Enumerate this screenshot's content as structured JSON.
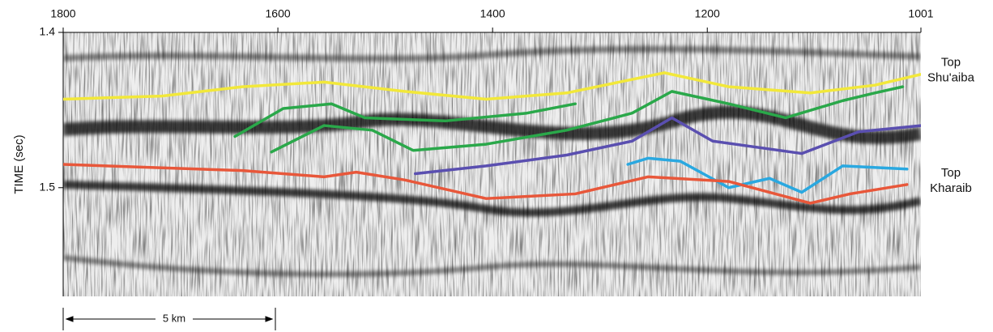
{
  "chart_data": {
    "type": "line",
    "ylabel": "TIME (sec)",
    "xlim": [
      1800,
      1001
    ],
    "xticks": [
      1800,
      1600,
      1400,
      1200,
      1001
    ],
    "ylim": [
      1.4,
      1.57
    ],
    "yticks": [
      1.4,
      1.5
    ],
    "y_inverted": true,
    "series": [
      {
        "name": "Top Shu'aiba",
        "label_lines": [
          "Top",
          "Shu'aiba"
        ],
        "color": "#f2e83a",
        "x": [
          1800,
          1708,
          1633,
          1557,
          1482,
          1406,
          1331,
          1240,
          1180,
          1104,
          1044,
          1001
        ],
        "values": [
          1.443,
          1.441,
          1.435,
          1.432,
          1.438,
          1.443,
          1.439,
          1.426,
          1.435,
          1.439,
          1.434,
          1.427
        ]
      },
      {
        "color": "#2aa84a",
        "x": [
          1640,
          1595,
          1550,
          1519,
          1444,
          1368,
          1323
        ],
        "values": [
          1.467,
          1.449,
          1.446,
          1.455,
          1.457,
          1.452,
          1.446
        ]
      },
      {
        "color": "#2aa84a",
        "x": [
          1606,
          1557,
          1512,
          1474,
          1406,
          1331,
          1270,
          1233,
          1180,
          1127,
          1074,
          1044,
          1018
        ],
        "values": [
          1.477,
          1.46,
          1.463,
          1.476,
          1.472,
          1.463,
          1.452,
          1.438,
          1.446,
          1.455,
          1.444,
          1.439,
          1.435
        ]
      },
      {
        "color": "#5a4fb0",
        "x": [
          1472,
          1406,
          1331,
          1270,
          1233,
          1195,
          1112,
          1059,
          1001
        ],
        "values": [
          1.491,
          1.486,
          1.479,
          1.47,
          1.455,
          1.47,
          1.478,
          1.464,
          1.46
        ]
      },
      {
        "color": "#2aa8e0",
        "x": [
          1274,
          1255,
          1225,
          1180,
          1142,
          1112,
          1074,
          1014
        ],
        "values": [
          1.485,
          1.481,
          1.483,
          1.5,
          1.494,
          1.503,
          1.486,
          1.488
        ]
      },
      {
        "name": "Top Kharaib",
        "label_lines": [
          "Top",
          "Kharaib"
        ],
        "color": "#e8573a",
        "x": [
          1800,
          1633,
          1557,
          1527,
          1482,
          1406,
          1323,
          1255,
          1180,
          1104,
          1067,
          1014
        ],
        "values": [
          1.485,
          1.489,
          1.493,
          1.49,
          1.495,
          1.507,
          1.504,
          1.493,
          1.496,
          1.51,
          1.504,
          1.498
        ]
      }
    ],
    "scale_bar_label": "5 km"
  }
}
